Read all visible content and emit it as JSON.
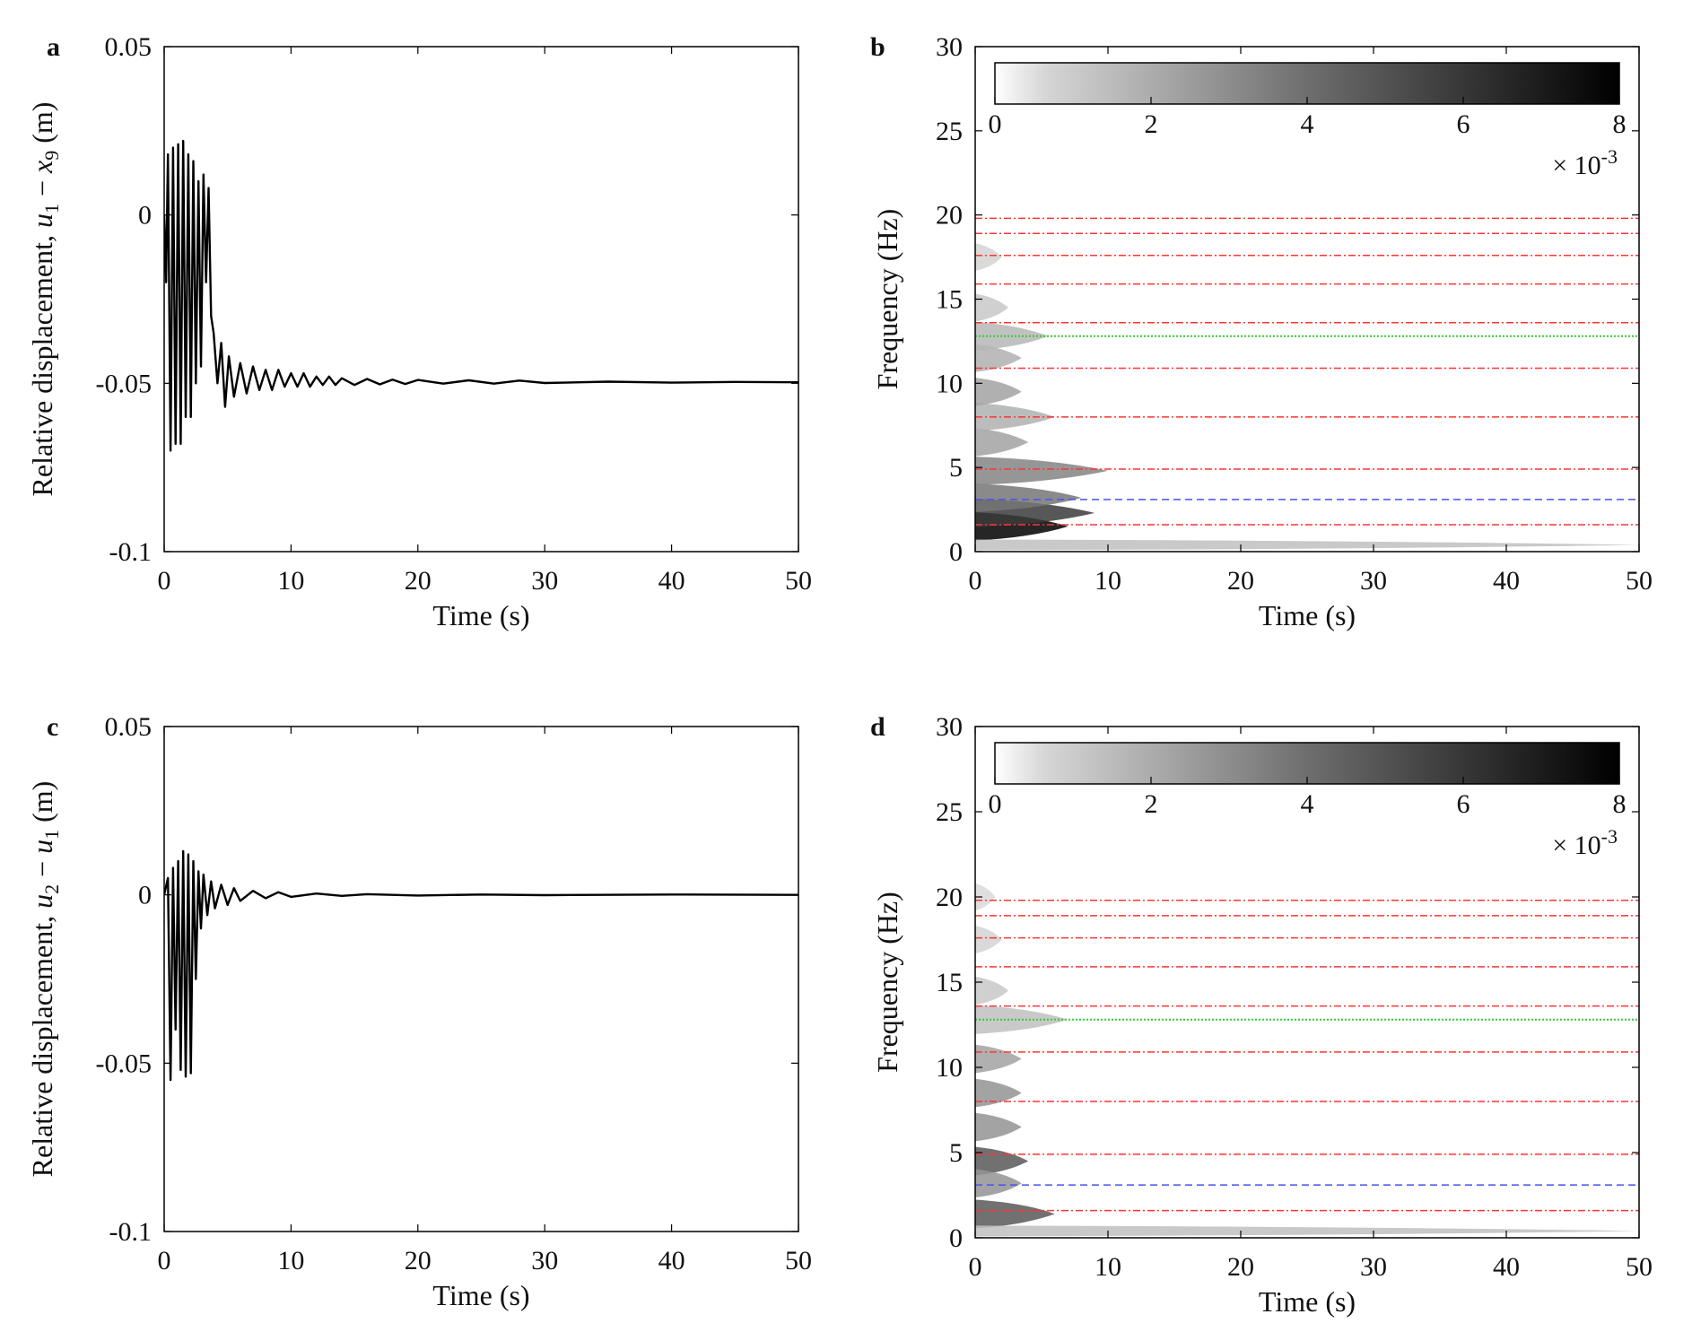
{
  "chart_data": [
    {
      "panel": "a",
      "type": "line",
      "xlabel": "Time (s)",
      "ylabel_text": "Relative displacement, ",
      "ylabel_math": {
        "a": "u",
        "a_sub": "1",
        "op": " − ",
        "b": "x",
        "b_sub": "9",
        "unit": " (m)"
      },
      "xlim": [
        0,
        50
      ],
      "ylim": [
        -0.1,
        0.05
      ],
      "xticks": [
        0,
        10,
        20,
        30,
        40,
        50
      ],
      "xtick_labels": [
        "0",
        "10",
        "20",
        "30",
        "40",
        "50"
      ],
      "yticks": [
        -0.1,
        -0.05,
        0,
        0.05
      ],
      "ytick_labels": [
        "-0.1",
        "-0.05",
        "0",
        "0.05"
      ],
      "line_color": "#000000",
      "series": [
        {
          "x": [
            0,
            0.15,
            0.3,
            0.5,
            0.7,
            0.9,
            1.1,
            1.3,
            1.5,
            1.7,
            1.9,
            2.1,
            2.3,
            2.5,
            2.7,
            2.9,
            3.1,
            3.3,
            3.5,
            3.7,
            3.9,
            4.2,
            4.5,
            4.8,
            5.1,
            5.5,
            6,
            6.5,
            7,
            7.5,
            8,
            8.5,
            9,
            9.5,
            10,
            10.5,
            11,
            11.5,
            12,
            12.5,
            13,
            13.5,
            14,
            15,
            16,
            17,
            18,
            19,
            20,
            22,
            24,
            26,
            28,
            30,
            35,
            40,
            45,
            50
          ],
          "y": [
            0,
            -0.02,
            0.018,
            -0.07,
            0.02,
            -0.068,
            0.021,
            -0.068,
            0.022,
            -0.06,
            0.018,
            -0.06,
            0.016,
            -0.05,
            0.01,
            -0.045,
            0.012,
            -0.02,
            0.008,
            -0.03,
            -0.035,
            -0.05,
            -0.038,
            -0.057,
            -0.042,
            -0.054,
            -0.044,
            -0.053,
            -0.045,
            -0.052,
            -0.046,
            -0.052,
            -0.046,
            -0.051,
            -0.047,
            -0.051,
            -0.047,
            -0.051,
            -0.048,
            -0.0505,
            -0.048,
            -0.0505,
            -0.0485,
            -0.0505,
            -0.0487,
            -0.0503,
            -0.0489,
            -0.0502,
            -0.049,
            -0.0501,
            -0.0491,
            -0.0501,
            -0.0492,
            -0.0499,
            -0.0495,
            -0.0498,
            -0.0496,
            -0.0497
          ]
        }
      ]
    },
    {
      "panel": "b",
      "type": "heatmap",
      "xlabel": "Time (s)",
      "ylabel": "Frequency (Hz)",
      "xlim": [
        0,
        50
      ],
      "ylim": [
        0,
        30
      ],
      "xticks": [
        0,
        10,
        20,
        30,
        40,
        50
      ],
      "xtick_labels": [
        "0",
        "10",
        "20",
        "30",
        "40",
        "50"
      ],
      "yticks": [
        0,
        5,
        10,
        15,
        20,
        25,
        30
      ],
      "ytick_labels": [
        "0",
        "5",
        "10",
        "15",
        "20",
        "25",
        "30"
      ],
      "colorbar": {
        "min": 0,
        "max": 8,
        "ticks": [
          "0",
          "2",
          "4",
          "6",
          "8"
        ],
        "multiplier_prefix": "× 10",
        "multiplier_exp": "-3",
        "colormap": "gray-reversed"
      },
      "ref_lines": {
        "red": [
          1.6,
          4.9,
          8.0,
          10.9,
          13.6,
          15.9,
          17.6,
          18.9,
          19.8
        ],
        "green": [
          12.8
        ],
        "blue": [
          3.1
        ],
        "colors": {
          "red": "#ff3333",
          "green": "#33cc33",
          "blue": "#4455ee"
        }
      },
      "energy_blobs": [
        {
          "f": 1.5,
          "t_end": 7,
          "level": 8
        },
        {
          "f": 2.3,
          "t_end": 9,
          "level": 6
        },
        {
          "f": 3.2,
          "t_end": 8,
          "level": 4
        },
        {
          "f": 4.8,
          "t_end": 10,
          "level": 3.5
        },
        {
          "f": 6.5,
          "t_end": 4,
          "level": 2.5
        },
        {
          "f": 8.0,
          "t_end": 6,
          "level": 2.0
        },
        {
          "f": 9.5,
          "t_end": 3.5,
          "level": 2.5
        },
        {
          "f": 11.5,
          "t_end": 3.5,
          "level": 2.0
        },
        {
          "f": 12.8,
          "t_end": 5.5,
          "level": 1.8
        },
        {
          "f": 14.5,
          "t_end": 2.5,
          "level": 1.2
        },
        {
          "f": 17.5,
          "t_end": 2.0,
          "level": 0.8
        },
        {
          "f": 0.4,
          "t_end": 50,
          "level": 1.5
        }
      ]
    },
    {
      "panel": "c",
      "type": "line",
      "xlabel": "Time (s)",
      "ylabel_text": "Relative displacement, ",
      "ylabel_math": {
        "a": "u",
        "a_sub": "2",
        "op": " − ",
        "b": "u",
        "b_sub": "1",
        "unit": " (m)"
      },
      "xlim": [
        0,
        50
      ],
      "ylim": [
        -0.1,
        0.05
      ],
      "xticks": [
        0,
        10,
        20,
        30,
        40,
        50
      ],
      "xtick_labels": [
        "0",
        "10",
        "20",
        "30",
        "40",
        "50"
      ],
      "yticks": [
        -0.1,
        -0.05,
        0,
        0.05
      ],
      "ytick_labels": [
        "-0.1",
        "-0.05",
        "0",
        "0.05"
      ],
      "line_color": "#000000",
      "series": [
        {
          "x": [
            0,
            0.3,
            0.5,
            0.7,
            0.9,
            1.1,
            1.3,
            1.5,
            1.7,
            1.9,
            2.1,
            2.3,
            2.5,
            2.7,
            2.9,
            3.1,
            3.4,
            3.7,
            4,
            4.5,
            5,
            5.5,
            6,
            7,
            8,
            9,
            10,
            12,
            14,
            16,
            20,
            25,
            30,
            40,
            50
          ],
          "y": [
            0,
            0.005,
            -0.055,
            0.008,
            -0.04,
            0.01,
            -0.052,
            0.013,
            -0.054,
            0.012,
            -0.053,
            0.01,
            -0.025,
            0.007,
            -0.01,
            0.006,
            -0.006,
            0.004,
            -0.004,
            0.003,
            -0.003,
            0.002,
            -0.0018,
            0.0012,
            -0.001,
            0.0008,
            -0.0006,
            0.0004,
            -0.0003,
            0.0002,
            -0.0002,
            0.0001,
            -0.0001,
            0.0001,
            0
          ]
        }
      ]
    },
    {
      "panel": "d",
      "type": "heatmap",
      "xlabel": "Time (s)",
      "ylabel": "Frequency (Hz)",
      "xlim": [
        0,
        50
      ],
      "ylim": [
        0,
        30
      ],
      "xticks": [
        0,
        10,
        20,
        30,
        40,
        50
      ],
      "xtick_labels": [
        "0",
        "10",
        "20",
        "30",
        "40",
        "50"
      ],
      "yticks": [
        0,
        5,
        10,
        15,
        20,
        25,
        30
      ],
      "ytick_labels": [
        "0",
        "5",
        "10",
        "15",
        "20",
        "25",
        "30"
      ],
      "colorbar": {
        "min": 0,
        "max": 8,
        "ticks": [
          "0",
          "2",
          "4",
          "6",
          "8"
        ],
        "multiplier_prefix": "× 10",
        "multiplier_exp": "-3",
        "colormap": "gray-reversed"
      },
      "ref_lines": {
        "red": [
          1.6,
          4.9,
          8.0,
          10.9,
          13.6,
          15.9,
          17.6,
          18.9,
          19.8
        ],
        "green": [
          12.8
        ],
        "blue": [
          3.1
        ],
        "colors": {
          "red": "#ff3333",
          "green": "#33cc33",
          "blue": "#4455ee"
        }
      },
      "energy_blobs": [
        {
          "f": 1.4,
          "t_end": 6,
          "level": 5
        },
        {
          "f": 4.5,
          "t_end": 4,
          "level": 5
        },
        {
          "f": 3.2,
          "t_end": 3.5,
          "level": 3
        },
        {
          "f": 6.5,
          "t_end": 3.5,
          "level": 3
        },
        {
          "f": 8.5,
          "t_end": 3.5,
          "level": 3
        },
        {
          "f": 10.5,
          "t_end": 3.5,
          "level": 2.5
        },
        {
          "f": 12.8,
          "t_end": 7,
          "level": 1.5
        },
        {
          "f": 14.5,
          "t_end": 2.5,
          "level": 1.2
        },
        {
          "f": 17.5,
          "t_end": 2.0,
          "level": 0.8
        },
        {
          "f": 20.0,
          "t_end": 1.5,
          "level": 0.6
        },
        {
          "f": 0.4,
          "t_end": 50,
          "level": 1.5
        }
      ]
    }
  ]
}
